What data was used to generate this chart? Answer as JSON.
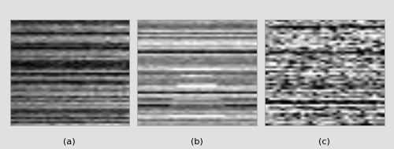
{
  "fig_width": 5.0,
  "fig_height": 1.9,
  "dpi": 100,
  "background_color": "#e0e0e0",
  "panel_labels": [
    "(a)",
    "(b)",
    "(c)"
  ],
  "n_rows": 50,
  "n_cols": 30,
  "label_fontsize": 8,
  "cmap": "gray"
}
